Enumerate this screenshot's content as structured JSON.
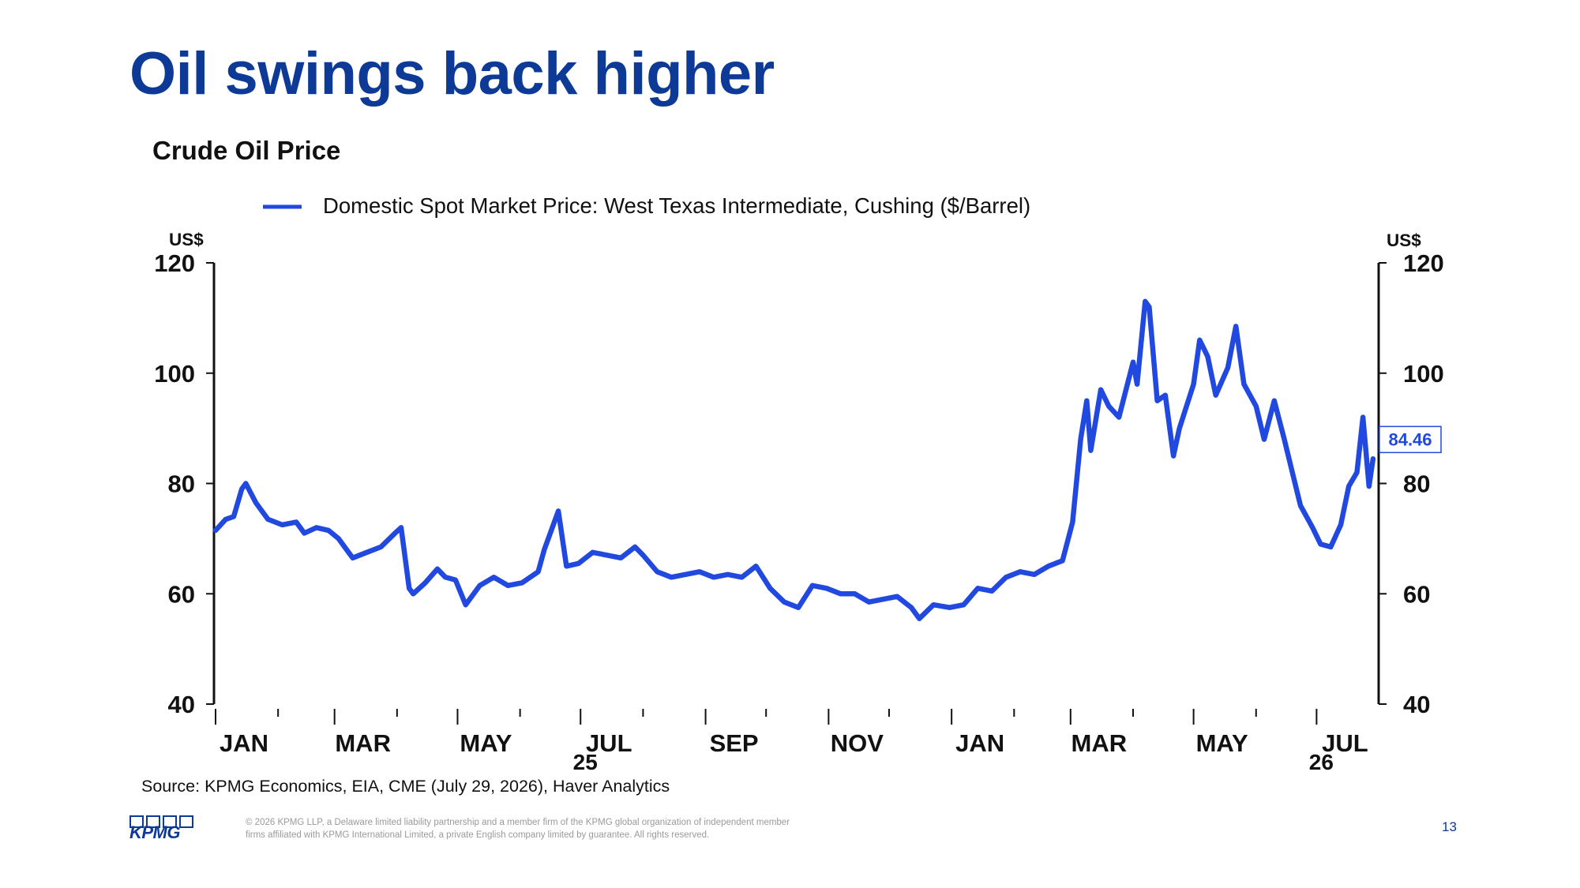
{
  "slide": {
    "title": "Oil swings back higher",
    "source": "Source: KPMG Economics, EIA, CME (July 29, 2026), Haver Analytics",
    "page_number": "13",
    "legal_line1": "© 2026 KPMG LLP, a Delaware limited liability partnership and a member firm of the KPMG global organization of independent member",
    "legal_line2": "firms affiliated with KPMG International Limited, a private English company limited by guarantee. All rights reserved.",
    "logo_text": "KPMG"
  },
  "colors": {
    "title": "#0c3a96",
    "series": "#2149e0",
    "axis": "#111111",
    "legal": "#9a9a9a"
  },
  "chart_data": {
    "type": "line",
    "title": "Crude Oil Price",
    "legend_position": "top",
    "grid": false,
    "y_unit_left": "US$",
    "y_unit_right": "US$",
    "ylim": [
      40,
      120
    ],
    "yticks": [
      40,
      60,
      80,
      100,
      120
    ],
    "x_range": [
      "2025-01-01",
      "2026-07-31"
    ],
    "x_month_labels": [
      "JAN",
      "MAR",
      "MAY",
      "JUL",
      "SEP",
      "NOV",
      "JAN",
      "MAR",
      "MAY",
      "JUL"
    ],
    "x_year_labels": [
      {
        "label": "25",
        "under_month_index": 3
      },
      {
        "label": "26",
        "under_month_index": 9
      }
    ],
    "last_value_label": "84.46",
    "series": [
      {
        "name": "Domestic Spot Market Price: West Texas Intermediate, Cushing ($/Barrel)",
        "color": "#2149e0",
        "points": [
          [
            "2025-01-01",
            71.5
          ],
          [
            "2025-01-06",
            73.5
          ],
          [
            "2025-01-10",
            74.0
          ],
          [
            "2025-01-14",
            79.0
          ],
          [
            "2025-01-16",
            80.0
          ],
          [
            "2025-01-21",
            76.5
          ],
          [
            "2025-01-27",
            73.5
          ],
          [
            "2025-02-03",
            72.5
          ],
          [
            "2025-02-10",
            73.0
          ],
          [
            "2025-02-14",
            71.0
          ],
          [
            "2025-02-20",
            72.0
          ],
          [
            "2025-02-26",
            71.5
          ],
          [
            "2025-03-03",
            70.0
          ],
          [
            "2025-03-07",
            68.0
          ],
          [
            "2025-03-10",
            66.5
          ],
          [
            "2025-03-17",
            67.5
          ],
          [
            "2025-03-24",
            68.5
          ],
          [
            "2025-03-31",
            71.0
          ],
          [
            "2025-04-03",
            72.0
          ],
          [
            "2025-04-07",
            61.0
          ],
          [
            "2025-04-09",
            60.0
          ],
          [
            "2025-04-15",
            62.0
          ],
          [
            "2025-04-21",
            64.5
          ],
          [
            "2025-04-25",
            63.0
          ],
          [
            "2025-04-30",
            62.5
          ],
          [
            "2025-05-05",
            58.0
          ],
          [
            "2025-05-12",
            61.5
          ],
          [
            "2025-05-19",
            63.0
          ],
          [
            "2025-05-26",
            61.5
          ],
          [
            "2025-06-02",
            62.0
          ],
          [
            "2025-06-10",
            64.0
          ],
          [
            "2025-06-13",
            68.0
          ],
          [
            "2025-06-17",
            72.0
          ],
          [
            "2025-06-20",
            75.0
          ],
          [
            "2025-06-24",
            65.0
          ],
          [
            "2025-06-30",
            65.5
          ],
          [
            "2025-07-07",
            67.5
          ],
          [
            "2025-07-14",
            67.0
          ],
          [
            "2025-07-21",
            66.5
          ],
          [
            "2025-07-28",
            68.5
          ],
          [
            "2025-08-01",
            67.0
          ],
          [
            "2025-08-08",
            64.0
          ],
          [
            "2025-08-15",
            63.0
          ],
          [
            "2025-08-22",
            63.5
          ],
          [
            "2025-08-29",
            64.0
          ],
          [
            "2025-09-05",
            63.0
          ],
          [
            "2025-09-12",
            63.5
          ],
          [
            "2025-09-19",
            63.0
          ],
          [
            "2025-09-26",
            65.0
          ],
          [
            "2025-10-03",
            61.0
          ],
          [
            "2025-10-10",
            58.5
          ],
          [
            "2025-10-17",
            57.5
          ],
          [
            "2025-10-24",
            61.5
          ],
          [
            "2025-10-31",
            61.0
          ],
          [
            "2025-11-07",
            60.0
          ],
          [
            "2025-11-14",
            60.0
          ],
          [
            "2025-11-21",
            58.5
          ],
          [
            "2025-11-28",
            59.0
          ],
          [
            "2025-12-05",
            59.5
          ],
          [
            "2025-12-12",
            57.5
          ],
          [
            "2025-12-16",
            55.5
          ],
          [
            "2025-12-23",
            58.0
          ],
          [
            "2025-12-31",
            57.5
          ],
          [
            "2026-01-07",
            58.0
          ],
          [
            "2026-01-14",
            61.0
          ],
          [
            "2026-01-21",
            60.5
          ],
          [
            "2026-01-28",
            63.0
          ],
          [
            "2026-02-04",
            64.0
          ],
          [
            "2026-02-11",
            63.5
          ],
          [
            "2026-02-18",
            65.0
          ],
          [
            "2026-02-25",
            66.0
          ],
          [
            "2026-03-02",
            73.0
          ],
          [
            "2026-03-06",
            88.0
          ],
          [
            "2026-03-09",
            95.0
          ],
          [
            "2026-03-11",
            86.0
          ],
          [
            "2026-03-16",
            97.0
          ],
          [
            "2026-03-20",
            94.0
          ],
          [
            "2026-03-25",
            92.0
          ],
          [
            "2026-04-01",
            102.0
          ],
          [
            "2026-04-03",
            98.0
          ],
          [
            "2026-04-07",
            113.0
          ],
          [
            "2026-04-09",
            112.0
          ],
          [
            "2026-04-13",
            95.0
          ],
          [
            "2026-04-17",
            96.0
          ],
          [
            "2026-04-21",
            85.0
          ],
          [
            "2026-04-24",
            90.0
          ],
          [
            "2026-05-01",
            98.0
          ],
          [
            "2026-05-04",
            106.0
          ],
          [
            "2026-05-08",
            103.0
          ],
          [
            "2026-05-12",
            96.0
          ],
          [
            "2026-05-18",
            101.0
          ],
          [
            "2026-05-22",
            108.5
          ],
          [
            "2026-05-26",
            98.0
          ],
          [
            "2026-06-01",
            94.0
          ],
          [
            "2026-06-05",
            88.0
          ],
          [
            "2026-06-10",
            95.0
          ],
          [
            "2026-06-15",
            88.0
          ],
          [
            "2026-06-19",
            82.0
          ],
          [
            "2026-06-23",
            76.0
          ],
          [
            "2026-06-29",
            72.0
          ],
          [
            "2026-07-03",
            69.0
          ],
          [
            "2026-07-08",
            68.5
          ],
          [
            "2026-07-13",
            72.5
          ],
          [
            "2026-07-17",
            79.5
          ],
          [
            "2026-07-21",
            82.0
          ],
          [
            "2026-07-24",
            92.0
          ],
          [
            "2026-07-27",
            79.5
          ],
          [
            "2026-07-29",
            84.46
          ]
        ]
      }
    ]
  }
}
